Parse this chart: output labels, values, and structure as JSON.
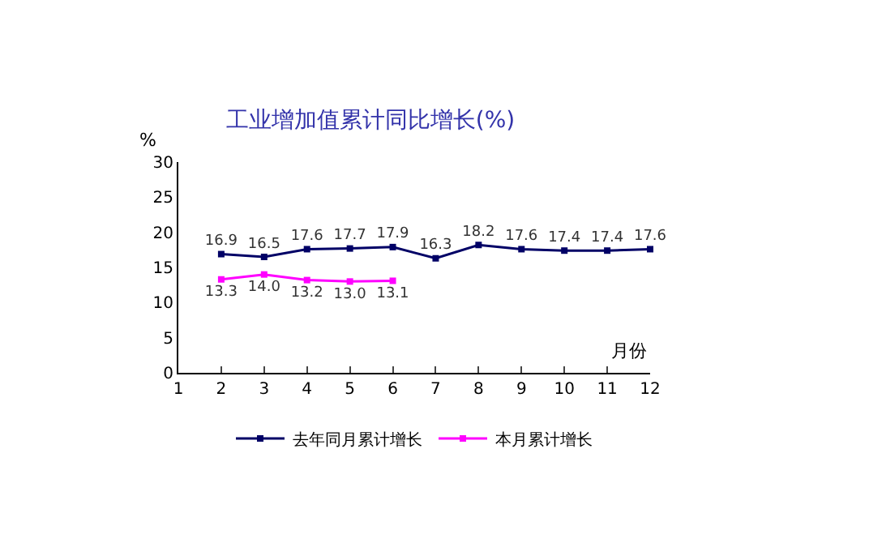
{
  "chart_data": {
    "type": "line",
    "title": "工业增加值累计同比增长(%)",
    "xlabel": "月份",
    "ylabel": "%",
    "xlim": [
      1,
      12
    ],
    "xticks": [
      1,
      2,
      3,
      4,
      5,
      6,
      7,
      8,
      9,
      10,
      11,
      12
    ],
    "ylim": [
      0,
      30
    ],
    "yticks": [
      0,
      5,
      10,
      15,
      20,
      25,
      30
    ],
    "series": [
      {
        "name": "去年同月累计增长",
        "color": "#000066",
        "x": [
          2,
          3,
          4,
          5,
          6,
          7,
          8,
          9,
          10,
          11,
          12
        ],
        "values": [
          16.9,
          16.5,
          17.6,
          17.7,
          17.9,
          16.3,
          18.2,
          17.6,
          17.4,
          17.4,
          17.6
        ],
        "value_labels": [
          "16.9",
          "16.5",
          "17.6",
          "17.7",
          "17.9",
          "16.3",
          "18.2",
          "17.6",
          "17.4",
          "17.4",
          "17.6"
        ]
      },
      {
        "name": "本月累计增长",
        "color": "#ff00ff",
        "x": [
          2,
          3,
          4,
          5,
          6
        ],
        "values": [
          13.3,
          14.0,
          13.2,
          13.0,
          13.1
        ],
        "value_labels": [
          "13.3",
          "14.0",
          "13.2",
          "13.0",
          "13.1"
        ]
      }
    ],
    "marker": "square",
    "line_style": "solid",
    "grid": false,
    "legend": "bottom"
  }
}
